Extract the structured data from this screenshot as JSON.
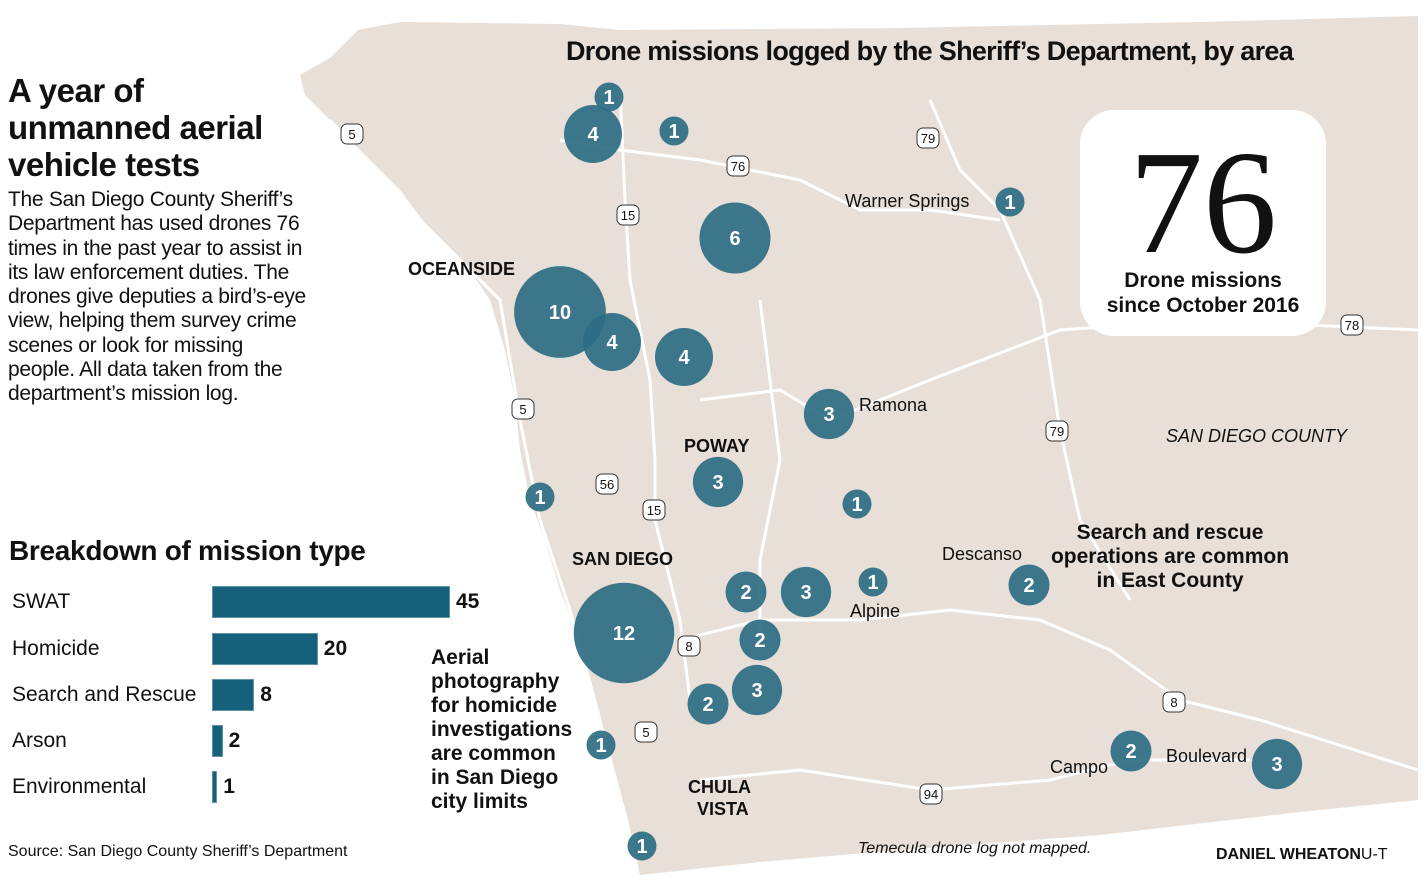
{
  "headline": "A year of unmanned aerial vehicle tests",
  "intro": "The San Diego County Sheriff’s Department has used drones 76 times in the past year to assist in its law enforcement duties. The drones give deputies a bird’s-eye view, helping them survey crime scenes or look for missing people. All data taken from the department’s mission log.",
  "map": {
    "title": "Drone missions logged by the Sheriff’s Department, by area",
    "callout": {
      "number": "76",
      "text_line1": "Drone missions",
      "text_line2": "since October 2016"
    },
    "cities": {
      "oceanside": "OCEANSIDE",
      "poway": "POWAY",
      "san_diego": "SAN DIEGO",
      "chula": "CHULA",
      "vista": "VISTA"
    },
    "places": {
      "warner": "Warner Springs",
      "ramona": "Ramona",
      "descanso": "Descanso",
      "alpine": "Alpine",
      "campo": "Campo",
      "boulevard": "Boulevard",
      "county": "SAN DIEGO COUNTY"
    },
    "highways": [
      "5",
      "79",
      "76",
      "15",
      "78",
      "5",
      "56",
      "15",
      "79",
      "8",
      "5",
      "8",
      "94"
    ],
    "bubble_counts": [
      1,
      4,
      1,
      6,
      1,
      10,
      4,
      4,
      3,
      3,
      1,
      1,
      2,
      3,
      1,
      12,
      2,
      2,
      3,
      2,
      1,
      2,
      3,
      1
    ],
    "notes": {
      "east": [
        "Search and rescue",
        "operations are common",
        "in East County"
      ],
      "city": [
        "Aerial",
        "photography",
        "for homicide",
        "investigations",
        "are common",
        "in San Diego",
        "city limits"
      ],
      "temecula": "Temecula drone log not mapped."
    },
    "colors": {
      "land": "#e7dfd8",
      "bubble": "#2e6c83",
      "road": "#ffffff"
    }
  },
  "chart_data": {
    "type": "bar",
    "title": "Breakdown of mission type",
    "categories": [
      "SWAT",
      "Homicide",
      "Search and Rescue",
      "Arson",
      "Environmental"
    ],
    "values": [
      45,
      20,
      8,
      2,
      1
    ],
    "value_labels": [
      "45",
      "20",
      "8",
      "2",
      "1"
    ],
    "orientation": "horizontal",
    "xlabel": "",
    "ylabel": "",
    "color": "#15607a"
  },
  "source": "Source: San Diego County Sheriff’s Department",
  "credit": {
    "name": "DANIEL WHEATON",
    "org": "U-T"
  }
}
